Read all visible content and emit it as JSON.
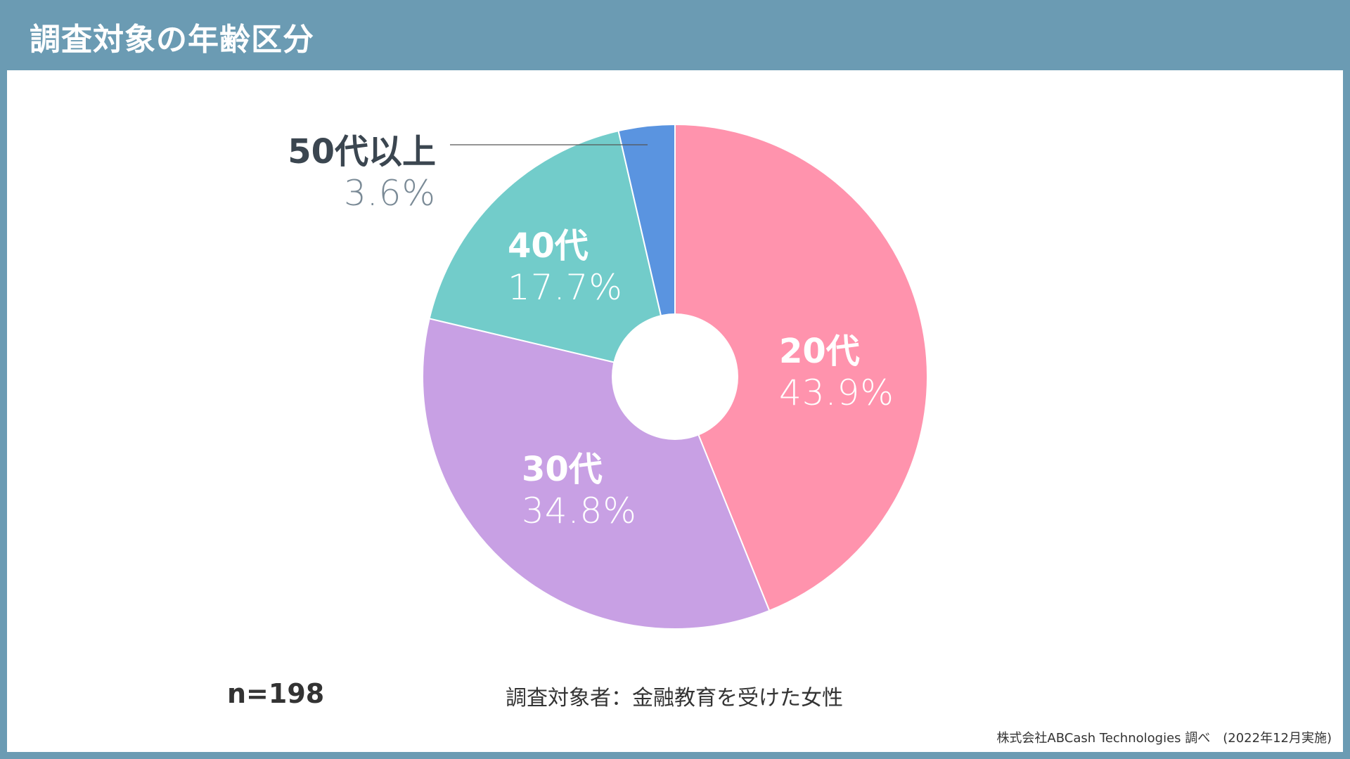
{
  "header": {
    "title": "調査対象の年齢区分"
  },
  "chart_data": {
    "type": "pie",
    "donut": true,
    "categories": [
      "20代",
      "30代",
      "40代",
      "50代以上"
    ],
    "values": [
      43.9,
      34.8,
      17.7,
      3.6
    ],
    "labels": [
      "43.9%",
      "34.8%",
      "17.7%",
      "3.6%"
    ],
    "colors": [
      "#ff93ad",
      "#c8a0e4",
      "#72ccca",
      "#5a94e0"
    ],
    "start": "top",
    "direction": "clockwise"
  },
  "footer": {
    "n": "n=198",
    "note": "調査対象者：金融教育を受けた女性",
    "source": "株式会社ABCash Technologies 調べ　(2022年12月実施)"
  }
}
